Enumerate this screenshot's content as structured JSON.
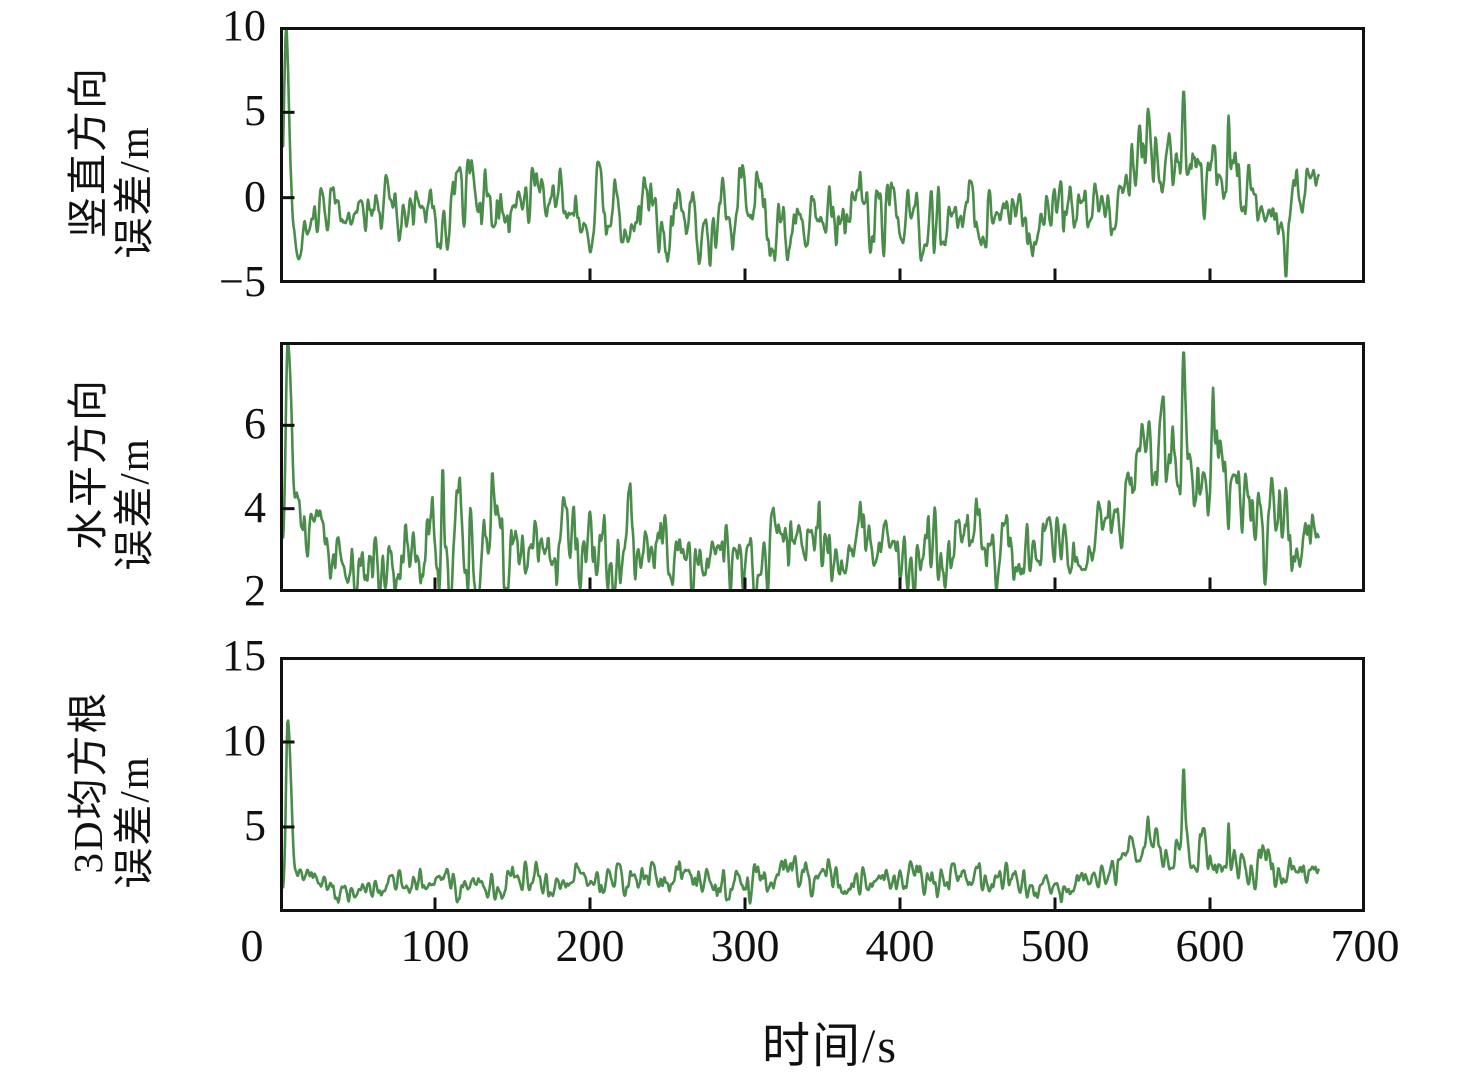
{
  "figure": {
    "background": "#ffffff",
    "axis_color": "#111111",
    "line_color": "#4a8c4a",
    "xlabel": "时间/s",
    "xlim": [
      0,
      700
    ],
    "x_tick_values": [
      0,
      100,
      200,
      300,
      400,
      500,
      600,
      700
    ],
    "x_tick_labels": [
      "0",
      "100",
      "200",
      "300",
      "400",
      "500",
      "600",
      "700"
    ],
    "x_tick_marks": [
      100,
      200,
      300,
      400,
      500,
      600
    ]
  },
  "chart_data": [
    {
      "type": "line",
      "panel": "vertical-error",
      "ylabel_line1": "竖直方向",
      "ylabel_line2": "误差/m",
      "ylim": [
        -5,
        10
      ],
      "ytick_labels": [
        [
          10,
          "10"
        ],
        [
          5,
          "5"
        ],
        [
          0,
          "0"
        ],
        [
          -5,
          "−5"
        ]
      ],
      "ytick_marks": [
        5,
        0
      ],
      "x_range": [
        2,
        670
      ],
      "series": {
        "name": "竖直方向误差",
        "color": "#4a8c4a",
        "seed": 11,
        "noise_octaves": [
          [
            2.2,
            0.6
          ],
          [
            6.5,
            0.4
          ],
          [
            1.1,
            0.25
          ]
        ],
        "noise_gain": 2.0,
        "baseline": [
          [
            2,
            -0.2,
            0.2
          ],
          [
            8,
            -0.8,
            0.8
          ],
          [
            15,
            -1.6,
            1.0
          ],
          [
            25,
            -0.8,
            1.2
          ],
          [
            60,
            -0.7,
            1.3
          ],
          [
            100,
            -0.6,
            1.4
          ],
          [
            150,
            -0.8,
            1.5
          ],
          [
            200,
            -0.6,
            1.5
          ],
          [
            240,
            -0.7,
            1.6
          ],
          [
            300,
            -1.1,
            1.6
          ],
          [
            340,
            -0.9,
            1.5
          ],
          [
            380,
            -0.8,
            1.4
          ],
          [
            420,
            -0.7,
            1.5
          ],
          [
            460,
            -1.2,
            1.3
          ],
          [
            495,
            -0.8,
            1.4
          ],
          [
            520,
            -0.5,
            1.4
          ],
          [
            540,
            0.0,
            1.5
          ],
          [
            552,
            1.8,
            1.6
          ],
          [
            568,
            2.0,
            1.7
          ],
          [
            585,
            1.8,
            1.9
          ],
          [
            600,
            1.4,
            1.7
          ],
          [
            615,
            1.3,
            1.6
          ],
          [
            630,
            0.6,
            1.5
          ],
          [
            643,
            0.2,
            1.5
          ],
          [
            650,
            -1.5,
            1.5
          ],
          [
            657,
            0.4,
            1.2
          ],
          [
            665,
            0.7,
            1.0
          ],
          [
            670,
            0.8,
            0.8
          ]
        ],
        "spikes": [
          [
            4,
            10,
            1.8,
            2.2
          ],
          [
            12,
            -3.6,
            2.0,
            3.0
          ],
          [
            560,
            5.2,
            1.2,
            1.2
          ],
          [
            583,
            6.3,
            1.4,
            1.4
          ],
          [
            612,
            4.8,
            1.1,
            1.1
          ],
          [
            649,
            -4.7,
            1.3,
            1.3
          ]
        ]
      }
    },
    {
      "type": "line",
      "panel": "horizontal-error",
      "ylabel_line1": "水平方向",
      "ylabel_line2": "误差/m",
      "ylim": [
        2,
        8
      ],
      "ytick_labels": [
        [
          6,
          "6"
        ],
        [
          4,
          "4"
        ],
        [
          2,
          "2"
        ]
      ],
      "ytick_marks": [
        6,
        4
      ],
      "x_range": [
        2,
        670
      ],
      "series": {
        "name": "水平方向误差",
        "color": "#4a8c4a",
        "seed": 23,
        "noise_octaves": [
          [
            2.2,
            0.6
          ],
          [
            6.5,
            0.4
          ],
          [
            1.1,
            0.25
          ]
        ],
        "noise_gain": 2.0,
        "baseline": [
          [
            2,
            3.0,
            0.3
          ],
          [
            15,
            3.6,
            0.6
          ],
          [
            30,
            2.8,
            0.6
          ],
          [
            60,
            2.7,
            0.6
          ],
          [
            90,
            3.0,
            0.8
          ],
          [
            110,
            3.2,
            0.9
          ],
          [
            140,
            2.9,
            0.8
          ],
          [
            175,
            3.0,
            0.7
          ],
          [
            210,
            3.0,
            0.8
          ],
          [
            245,
            3.1,
            0.8
          ],
          [
            280,
            2.9,
            0.7
          ],
          [
            310,
            2.6,
            0.6
          ],
          [
            330,
            3.4,
            0.7
          ],
          [
            365,
            3.2,
            0.6
          ],
          [
            400,
            3.1,
            0.7
          ],
          [
            435,
            3.0,
            0.7
          ],
          [
            470,
            3.2,
            0.7
          ],
          [
            505,
            3.3,
            0.6
          ],
          [
            535,
            3.4,
            0.6
          ],
          [
            550,
            4.9,
            0.8
          ],
          [
            568,
            5.2,
            0.8
          ],
          [
            585,
            5.3,
            0.9
          ],
          [
            600,
            5.1,
            0.8
          ],
          [
            615,
            4.6,
            0.9
          ],
          [
            630,
            3.9,
            0.8
          ],
          [
            645,
            3.5,
            0.7
          ],
          [
            660,
            3.6,
            0.6
          ],
          [
            670,
            3.4,
            0.5
          ]
        ],
        "spikes": [
          [
            5,
            8,
            1.8,
            3.5
          ],
          [
            105,
            5.0,
            1.0,
            1.0
          ],
          [
            137,
            4.9,
            0.9,
            0.9
          ],
          [
            583,
            7.8,
            1.2,
            1.2
          ],
          [
            602,
            6.9,
            0.9,
            0.9
          ]
        ]
      }
    },
    {
      "type": "line",
      "panel": "3d-rms-error",
      "ylabel_line1": "3D均方根",
      "ylabel_line2": "误差/m",
      "ylim": [
        0,
        15
      ],
      "ytick_labels": [
        [
          15,
          "15"
        ],
        [
          10,
          "10"
        ],
        [
          5,
          "5"
        ]
      ],
      "ytick_marks": [
        10,
        5
      ],
      "x_range": [
        2,
        670
      ],
      "series": {
        "name": "3D均方根误差",
        "color": "#4a8c4a",
        "seed": 37,
        "noise_octaves": [
          [
            2.2,
            0.6
          ],
          [
            6.5,
            0.4
          ],
          [
            1.1,
            0.25
          ]
        ],
        "noise_gain": 2.0,
        "baseline": [
          [
            2,
            1.2,
            0.2
          ],
          [
            15,
            2.0,
            0.5
          ],
          [
            30,
            1.5,
            0.5
          ],
          [
            60,
            1.3,
            0.5
          ],
          [
            90,
            1.5,
            0.6
          ],
          [
            120,
            1.8,
            0.7
          ],
          [
            155,
            1.8,
            0.7
          ],
          [
            190,
            1.8,
            0.7
          ],
          [
            225,
            1.9,
            0.7
          ],
          [
            260,
            1.8,
            0.7
          ],
          [
            295,
            1.9,
            0.8
          ],
          [
            330,
            2.0,
            0.8
          ],
          [
            365,
            1.9,
            0.7
          ],
          [
            400,
            1.8,
            0.7
          ],
          [
            435,
            1.8,
            0.7
          ],
          [
            470,
            1.8,
            0.6
          ],
          [
            505,
            2.0,
            0.7
          ],
          [
            535,
            2.0,
            0.6
          ],
          [
            550,
            3.4,
            0.8
          ],
          [
            568,
            3.6,
            0.8
          ],
          [
            585,
            3.6,
            0.9
          ],
          [
            600,
            3.4,
            0.9
          ],
          [
            615,
            3.2,
            0.9
          ],
          [
            630,
            2.7,
            0.8
          ],
          [
            645,
            2.3,
            0.7
          ],
          [
            660,
            2.4,
            0.6
          ],
          [
            670,
            2.3,
            0.5
          ]
        ],
        "spikes": [
          [
            5,
            11.3,
            1.6,
            3.0
          ],
          [
            560,
            5.6,
            0.9,
            0.9
          ],
          [
            583,
            8.5,
            1.1,
            1.1
          ],
          [
            612,
            5.2,
            0.9,
            0.9
          ]
        ]
      }
    }
  ]
}
